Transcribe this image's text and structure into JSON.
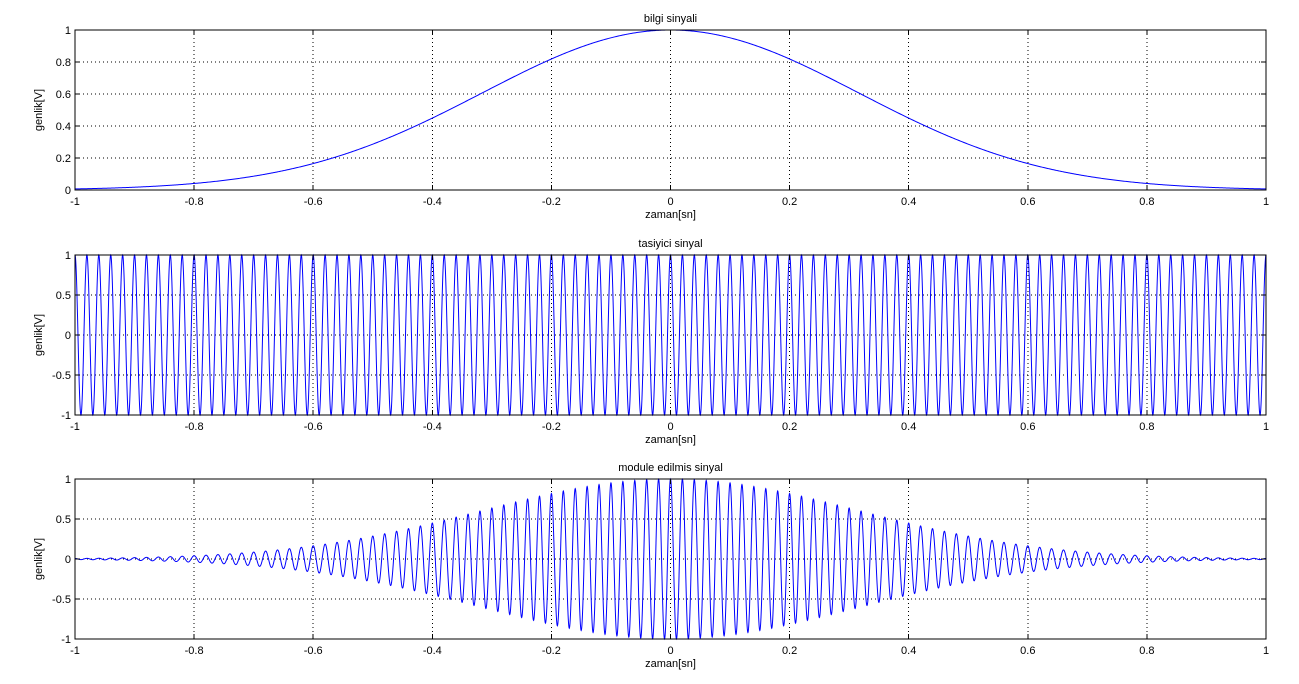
{
  "chart_data": [
    {
      "type": "line",
      "title": "bilgi sinyali",
      "xlabel": "zaman[sn]",
      "ylabel": "genlik[V]",
      "xlim": [
        -1,
        1
      ],
      "ylim": [
        0,
        1
      ],
      "xticks": [
        -1,
        -0.8,
        -0.6,
        -0.4,
        -0.2,
        0,
        0.2,
        0.4,
        0.6,
        0.8,
        1
      ],
      "xtick_labels": [
        "-1",
        "-0.8",
        "-0.6",
        "-0.4",
        "-0.2",
        "0",
        "0.2",
        "0.4",
        "0.6",
        "0.8",
        "1"
      ],
      "yticks": [
        0,
        0.2,
        0.4,
        0.6,
        0.8,
        1
      ],
      "ytick_labels": [
        "0",
        "0.2",
        "0.4",
        "0.6",
        "0.8",
        "1"
      ],
      "grid": true,
      "color": "#0000ff",
      "series": [
        {
          "x": [
            -1,
            -0.9,
            -0.8,
            -0.7,
            -0.6,
            -0.5,
            -0.4,
            -0.3,
            -0.2,
            -0.1,
            0,
            0.1,
            0.2,
            0.3,
            0.4,
            0.5,
            0.6,
            0.7,
            0.8,
            0.9,
            1
          ],
          "y": [
            0.007,
            0.018,
            0.041,
            0.085,
            0.16,
            0.28,
            0.44,
            0.63,
            0.81,
            0.95,
            1.0,
            0.95,
            0.81,
            0.63,
            0.44,
            0.28,
            0.16,
            0.085,
            0.041,
            0.018,
            0.007
          ]
        }
      ]
    },
    {
      "type": "line",
      "title": "tasiyici sinyal",
      "xlabel": "zaman[sn]",
      "ylabel": "genlik[V]",
      "xlim": [
        -1,
        1
      ],
      "ylim": [
        -1,
        1
      ],
      "xticks": [
        -1,
        -0.8,
        -0.6,
        -0.4,
        -0.2,
        0,
        0.2,
        0.4,
        0.6,
        0.8,
        1
      ],
      "xtick_labels": [
        "-1",
        "-0.8",
        "-0.6",
        "-0.4",
        "-0.2",
        "0",
        "0.2",
        "0.4",
        "0.6",
        "0.8",
        "1"
      ],
      "yticks": [
        -1,
        -0.5,
        0,
        0.5,
        1
      ],
      "ytick_labels": [
        "-1",
        "-0.5",
        "0",
        "0.5",
        "1"
      ],
      "grid": true,
      "color": "#0000ff",
      "series": [
        {
          "function": "cos(2*pi*f*t)",
          "frequency_hz": 50,
          "amplitude": 1
        }
      ]
    },
    {
      "type": "line",
      "title": "module edilmis sinyal",
      "xlabel": "zaman[sn]",
      "ylabel": "genlik[V]",
      "xlim": [
        -1,
        1
      ],
      "ylim": [
        -1,
        1
      ],
      "xticks": [
        -1,
        -0.8,
        -0.6,
        -0.4,
        -0.2,
        0,
        0.2,
        0.4,
        0.6,
        0.8,
        1
      ],
      "xtick_labels": [
        "-1",
        "-0.8",
        "-0.6",
        "-0.4",
        "-0.2",
        "0",
        "0.2",
        "0.4",
        "0.6",
        "0.8",
        "1"
      ],
      "yticks": [
        -1,
        -0.5,
        0,
        0.5,
        1
      ],
      "ytick_labels": [
        "-1",
        "-0.5",
        "0",
        "0.5",
        "1"
      ],
      "grid": true,
      "color": "#0000ff",
      "series": [
        {
          "function": "exp(-5*t^2)*cos(2*pi*f*t)",
          "frequency_hz": 50
        }
      ]
    }
  ]
}
